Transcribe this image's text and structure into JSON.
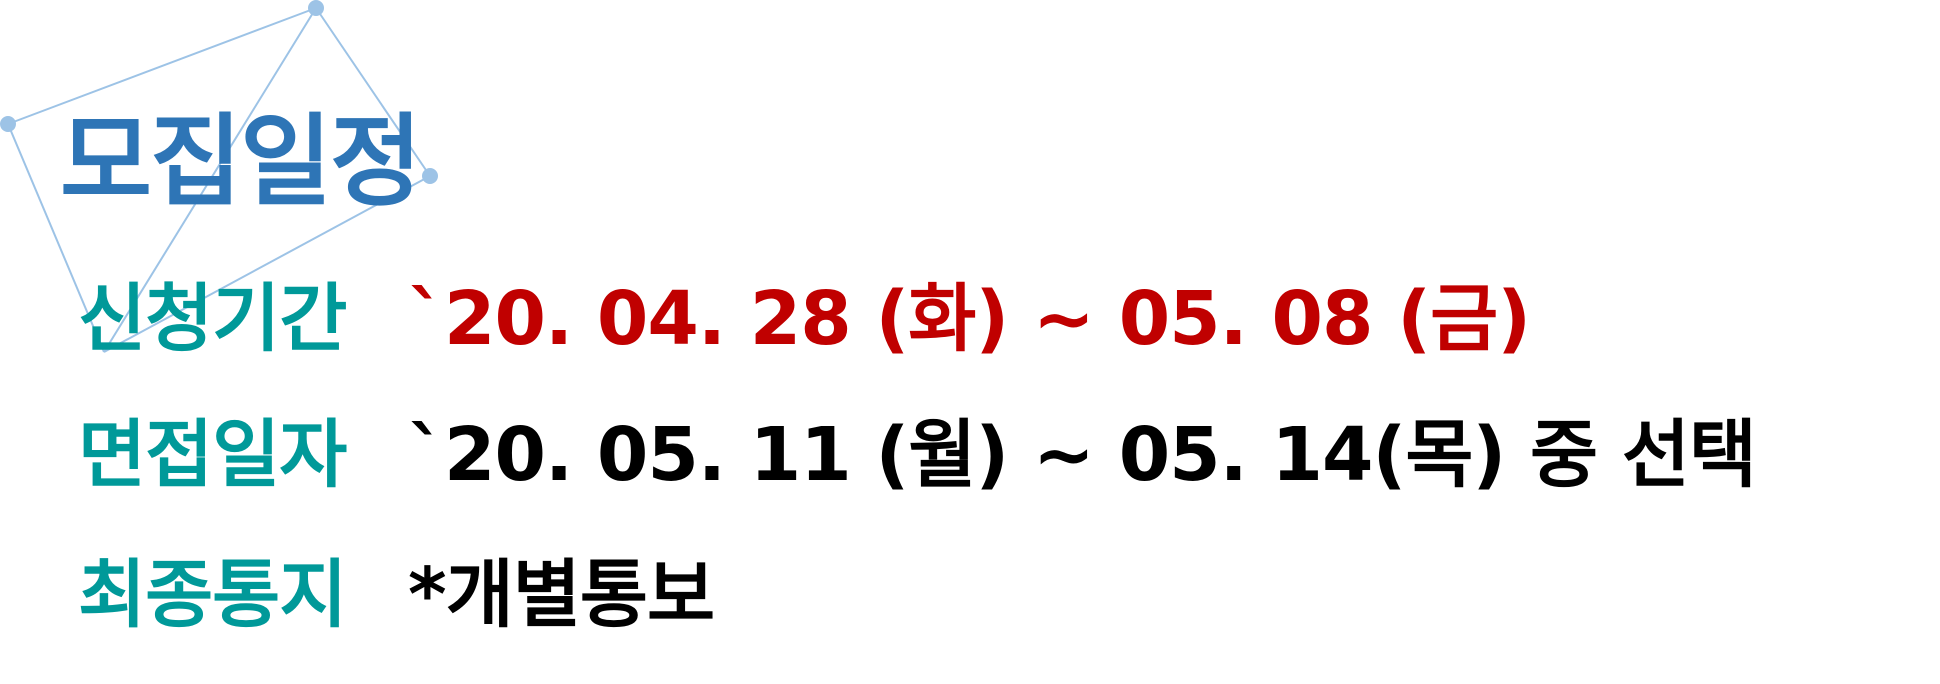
{
  "title": "모집일정",
  "rows": [
    {
      "label": "신청기간",
      "value": "`20. 04. 28 (화) ~ 05. 08 (금)"
    },
    {
      "label": "면접일자",
      "value": "`20. 05. 11 (월) ~ 05. 14(목) 중 선택"
    },
    {
      "label": "최종통지",
      "value": "*개별통보"
    }
  ],
  "colors": {
    "title": "#2e75b6",
    "label": "#009999",
    "highlight": "#c00000",
    "text": "#000000",
    "decoration": "#9dc3e6"
  },
  "decoration_icon": "network-lines-decoration"
}
